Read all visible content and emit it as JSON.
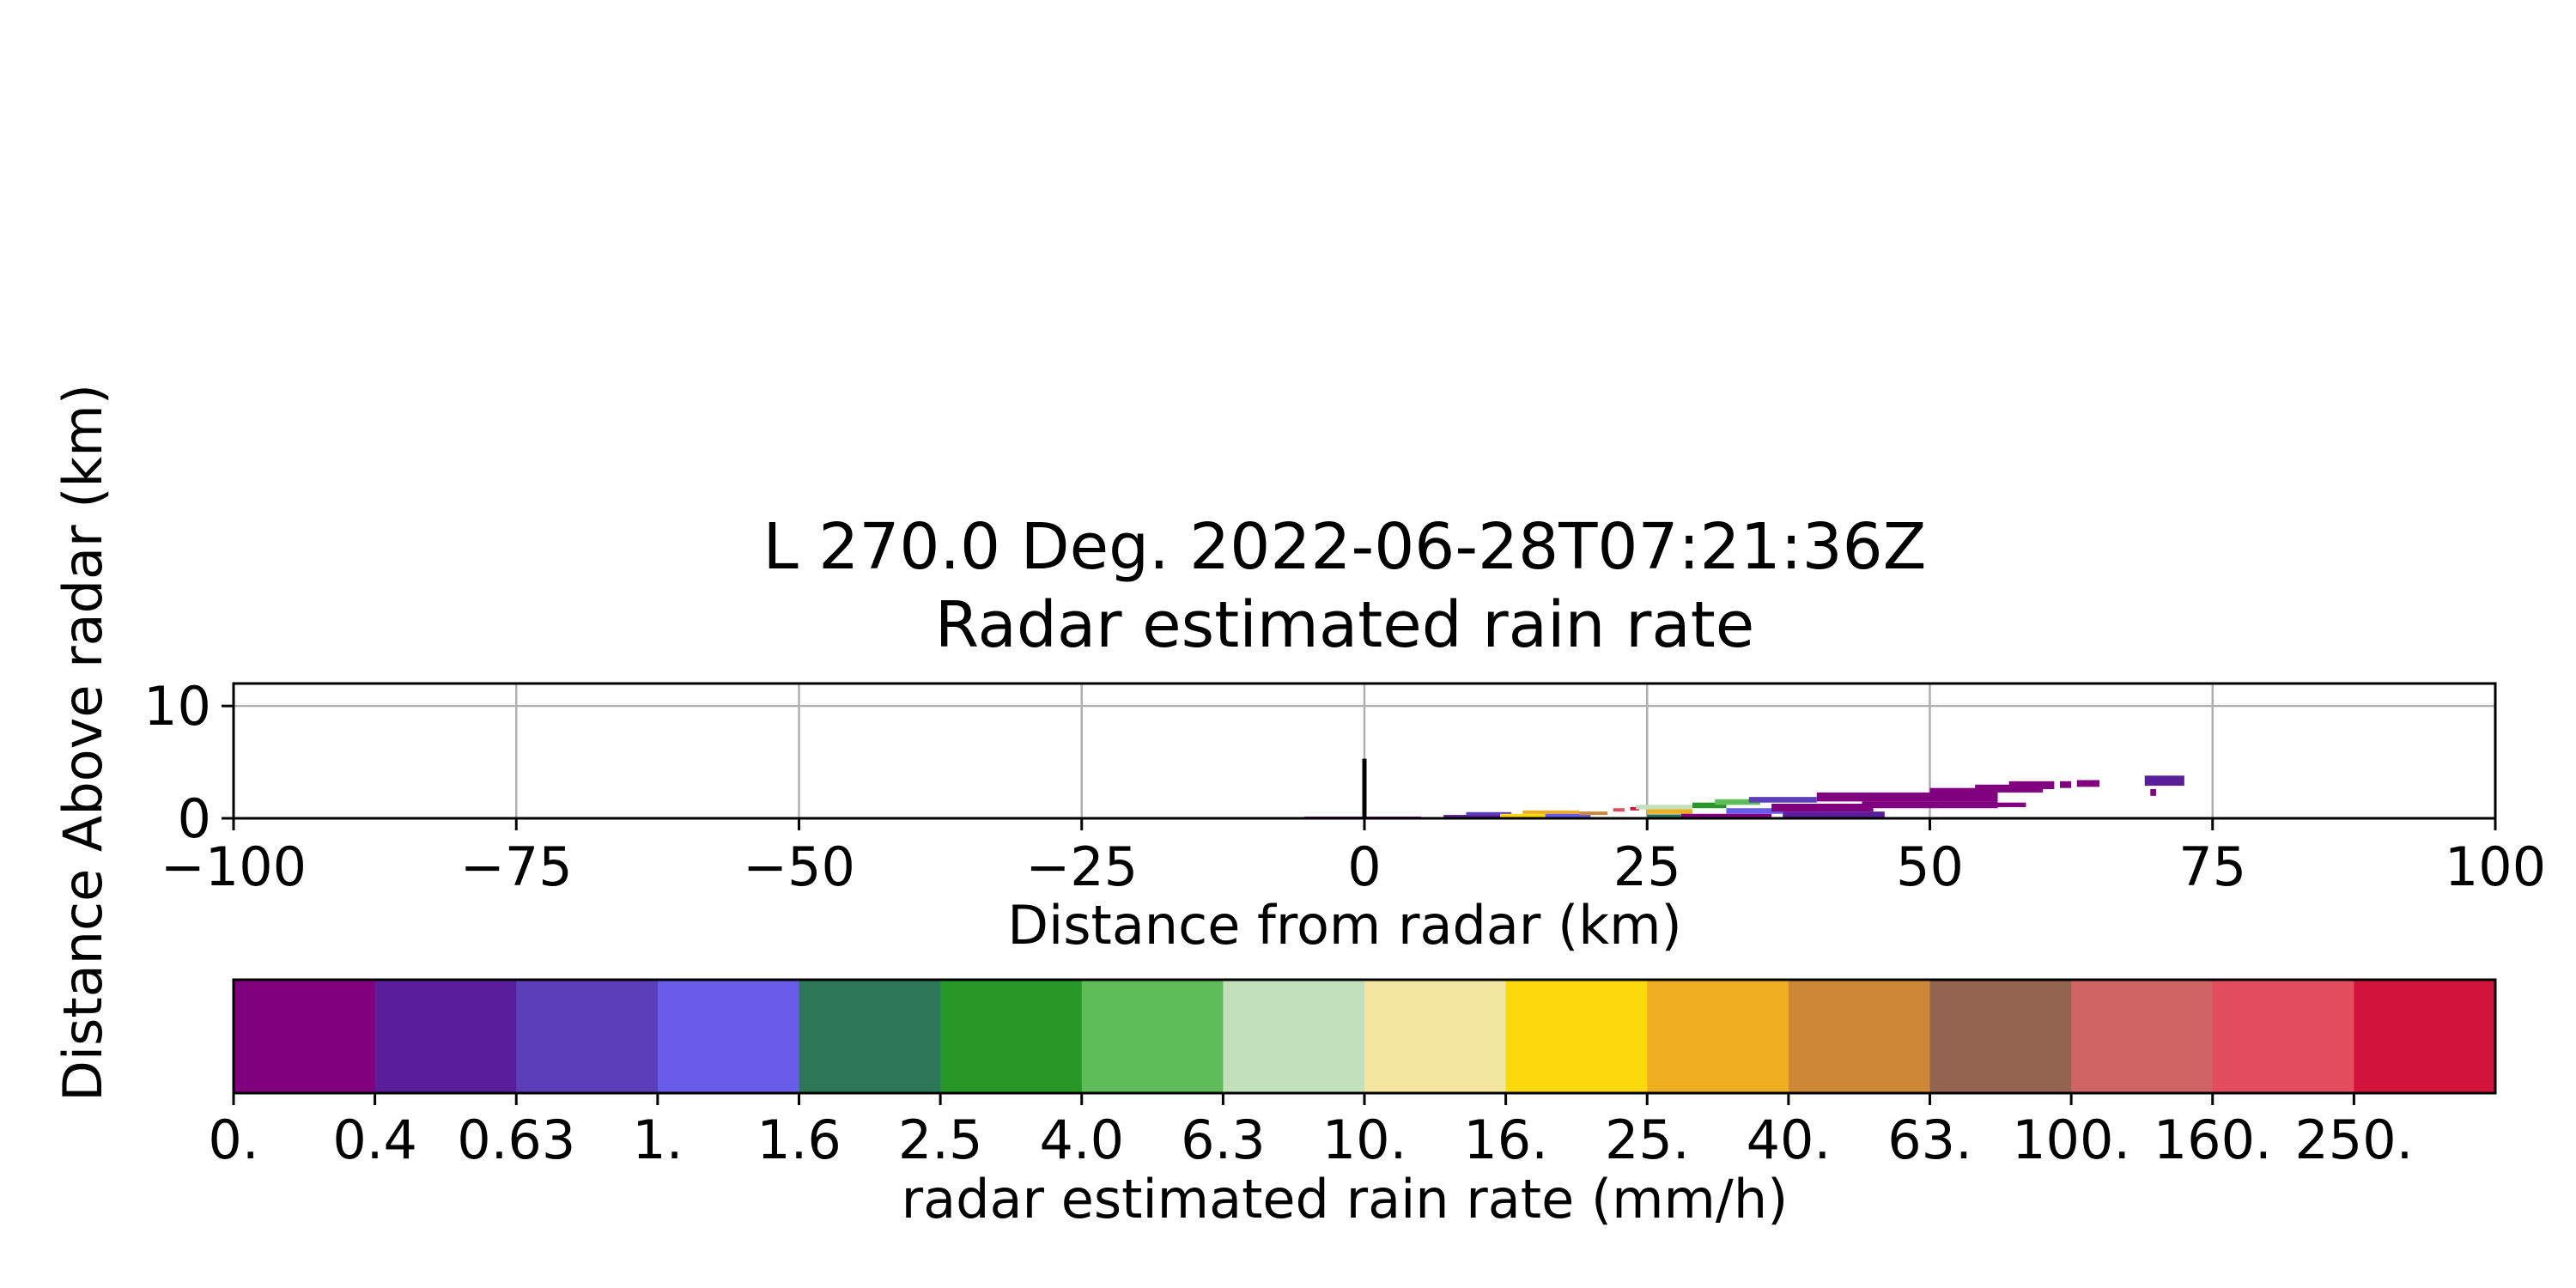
{
  "chart_data": {
    "type": "heatmap",
    "title_line1": "L 270.0 Deg. 2022-06-28T07:21:36Z",
    "title_line2": "Radar estimated rain rate",
    "xlabel": "Distance from radar (km)",
    "ylabel": "Distance Above radar  (km)",
    "xlim": [
      -100,
      100
    ],
    "ylim": [
      0,
      12
    ],
    "xticks": [
      -100,
      -75,
      -50,
      -25,
      0,
      25,
      50,
      75,
      100
    ],
    "xtick_labels": [
      "−100",
      "−75",
      "−50",
      "−25",
      "0",
      "25",
      "50",
      "75",
      "100"
    ],
    "yticks": [
      0,
      10
    ],
    "ytick_labels": [
      "0",
      "10"
    ],
    "grid": true,
    "radar_marker": {
      "x": 0,
      "y_top": 5.3
    },
    "colorbar": {
      "label": "radar estimated rain rate (mm/h)",
      "tick_labels": [
        "0.",
        "0.4",
        "0.63",
        "1.",
        "1.6",
        "2.5",
        "4.0",
        "6.3",
        "10.",
        "16.",
        "25.",
        "40.",
        "63.",
        "100.",
        "160.",
        "250."
      ],
      "colors": [
        "#800080",
        "#5b1e9a",
        "#5a3eba",
        "#6a5ceb",
        "#2b7757",
        "#279827",
        "#5ebd58",
        "#c2e0bb",
        "#f3e6a0",
        "#fcd90c",
        "#efad22",
        "#cd8736",
        "#93644f",
        "#d06464",
        "#e34c5d",
        "#d2143c"
      ]
    },
    "segments": [
      {
        "x0": -5.3,
        "x1": 5.0,
        "y0": 0.0,
        "y1": 0.15,
        "c": 0
      },
      {
        "x0": 7,
        "x1": 12,
        "y0": 0.05,
        "y1": 0.3,
        "c": 1
      },
      {
        "x0": 9,
        "x1": 13,
        "y0": 0.3,
        "y1": 0.55,
        "c": 2
      },
      {
        "x0": 12,
        "x1": 16,
        "y0": 0.1,
        "y1": 0.4,
        "c": 9
      },
      {
        "x0": 14,
        "x1": 19,
        "y0": 0.4,
        "y1": 0.7,
        "c": 10
      },
      {
        "x0": 16,
        "x1": 20,
        "y0": 0.1,
        "y1": 0.4,
        "c": 3
      },
      {
        "x0": 19,
        "x1": 21.5,
        "y0": 0.3,
        "y1": 0.6,
        "c": 11
      },
      {
        "x0": 22,
        "x1": 23,
        "y0": 0.6,
        "y1": 0.9,
        "c": 14
      },
      {
        "x0": 23.5,
        "x1": 24.3,
        "y0": 0.7,
        "y1": 1.0,
        "c": 15
      },
      {
        "x0": 24,
        "x1": 29,
        "y0": 0.8,
        "y1": 1.2,
        "c": 7
      },
      {
        "x0": 25,
        "x1": 29,
        "y0": 0.4,
        "y1": 0.8,
        "c": 10
      },
      {
        "x0": 25,
        "x1": 28,
        "y0": 0.0,
        "y1": 0.35,
        "c": 4
      },
      {
        "x0": 28,
        "x1": 36,
        "y0": 0.0,
        "y1": 0.4,
        "c": 0
      },
      {
        "x0": 29,
        "x1": 32,
        "y0": 0.9,
        "y1": 1.4,
        "c": 5
      },
      {
        "x0": 31,
        "x1": 35,
        "y0": 1.2,
        "y1": 1.7,
        "c": 6
      },
      {
        "x0": 32,
        "x1": 37,
        "y0": 0.4,
        "y1": 0.9,
        "c": 3
      },
      {
        "x0": 34,
        "x1": 40,
        "y0": 1.4,
        "y1": 1.9,
        "c": 2
      },
      {
        "x0": 37,
        "x1": 46,
        "y0": 0.0,
        "y1": 0.6,
        "c": 1
      },
      {
        "x0": 36,
        "x1": 45,
        "y0": 0.6,
        "y1": 1.3,
        "c": 0
      },
      {
        "x0": 40,
        "x1": 56,
        "y0": 1.5,
        "y1": 2.3,
        "c": 0
      },
      {
        "x0": 44,
        "x1": 56,
        "y0": 0.9,
        "y1": 1.5,
        "c": 0
      },
      {
        "x0": 50,
        "x1": 56,
        "y0": 2.1,
        "y1": 2.7,
        "c": 0
      },
      {
        "x0": 54,
        "x1": 60,
        "y0": 2.3,
        "y1": 3.0,
        "c": 0
      },
      {
        "x0": 56,
        "x1": 58.5,
        "y0": 1.0,
        "y1": 1.4,
        "c": 0
      },
      {
        "x0": 57,
        "x1": 61,
        "y0": 2.6,
        "y1": 3.3,
        "c": 0
      },
      {
        "x0": 61.5,
        "x1": 62.5,
        "y0": 2.7,
        "y1": 3.3,
        "c": 0
      },
      {
        "x0": 63,
        "x1": 65,
        "y0": 2.8,
        "y1": 3.4,
        "c": 0
      },
      {
        "x0": 69,
        "x1": 72.5,
        "y0": 2.9,
        "y1": 3.8,
        "c": 1
      },
      {
        "x0": 69.5,
        "x1": 70,
        "y0": 2.0,
        "y1": 2.6,
        "c": 0
      }
    ]
  }
}
